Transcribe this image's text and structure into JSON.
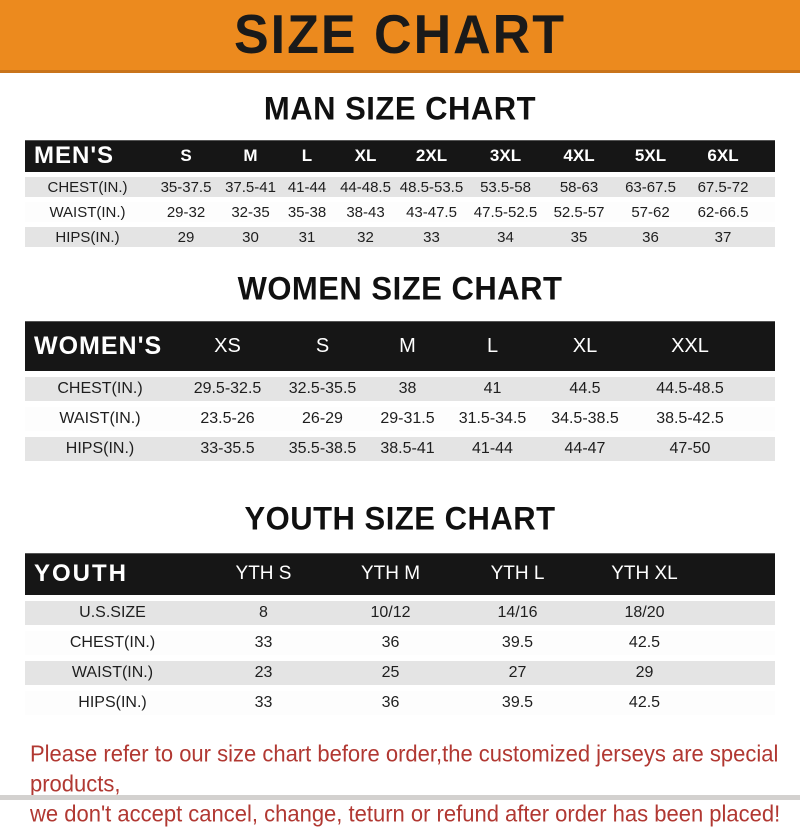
{
  "banner": {
    "title": "SIZE CHART"
  },
  "men": {
    "heading": "MAN SIZE CHART",
    "table": {
      "corner": "MEN'S",
      "columns": [
        "S",
        "M",
        "L",
        "XL",
        "2XL",
        "3XL",
        "4XL",
        "5XL",
        "6XL"
      ],
      "rows": [
        {
          "label": "CHEST(IN.)",
          "values": [
            "35-37.5",
            "37.5-41",
            "41-44",
            "44-48.5",
            "48.5-53.5",
            "53.5-58",
            "58-63",
            "63-67.5",
            "67.5-72"
          ]
        },
        {
          "label": "WAIST(IN.)",
          "values": [
            "29-32",
            "32-35",
            "35-38",
            "38-43",
            "43-47.5",
            "47.5-52.5",
            "52.5-57",
            "57-62",
            "62-66.5"
          ]
        },
        {
          "label": "HIPS(IN.)",
          "values": [
            "29",
            "30",
            "31",
            "32",
            "33",
            "34",
            "35",
            "36",
            "37"
          ]
        }
      ]
    }
  },
  "women": {
    "heading": "WOMEN SIZE CHART",
    "table": {
      "corner": "WOMEN'S",
      "columns": [
        "XS",
        "S",
        "M",
        "L",
        "XL",
        "XXL"
      ],
      "rows": [
        {
          "label": "CHEST(IN.)",
          "values": [
            "29.5-32.5",
            "32.5-35.5",
            "38",
            "41",
            "44.5",
            "44.5-48.5"
          ]
        },
        {
          "label": "WAIST(IN.)",
          "values": [
            "23.5-26",
            "26-29",
            "29-31.5",
            "31.5-34.5",
            "34.5-38.5",
            "38.5-42.5"
          ]
        },
        {
          "label": "HIPS(IN.)",
          "values": [
            "33-35.5",
            "35.5-38.5",
            "38.5-41",
            "41-44",
            "44-47",
            "47-50"
          ]
        }
      ]
    }
  },
  "youth": {
    "heading": "YOUTH SIZE CHART",
    "table": {
      "corner": "YOUTH",
      "columns": [
        "YTH S",
        "YTH M",
        "YTH L",
        "YTH XL"
      ],
      "rows": [
        {
          "label": "U.S.SIZE",
          "values": [
            "8",
            "10/12",
            "14/16",
            "18/20"
          ]
        },
        {
          "label": "CHEST(IN.)",
          "values": [
            "33",
            "36",
            "39.5",
            "42.5"
          ]
        },
        {
          "label": "WAIST(IN.)",
          "values": [
            "23",
            "25",
            "27",
            "29"
          ]
        },
        {
          "label": "HIPS(IN.)",
          "values": [
            "33",
            "36",
            "39.5",
            "42.5"
          ]
        }
      ]
    }
  },
  "disclaimer": {
    "line1": "Please refer to our size chart before order,the customized jerseys are special products,",
    "line2": "we don't accept cancel, change, teturn or refund after order has been placed!"
  },
  "colors": {
    "banner_bg": "#EC8A1E",
    "header_bar": "#161616",
    "row_stripe": "#E4E4E4",
    "disclaimer_red": "#B13832"
  }
}
